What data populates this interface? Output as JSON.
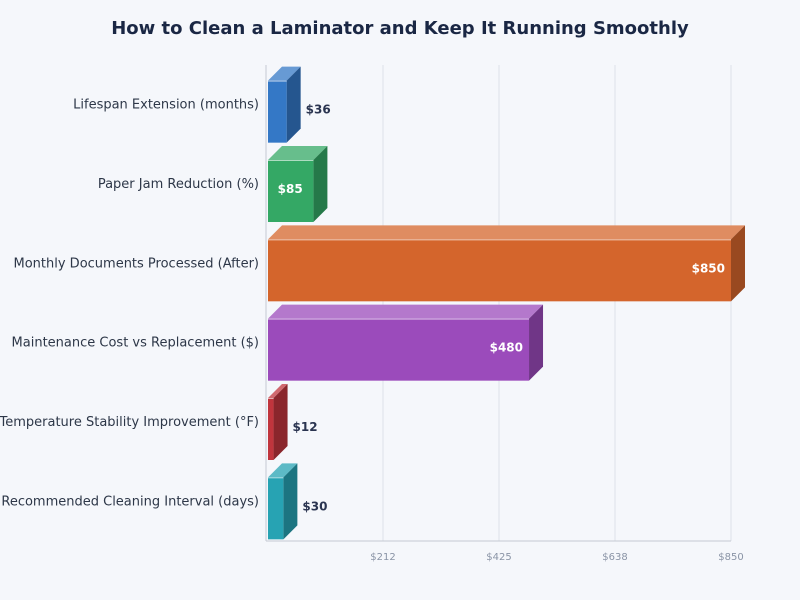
{
  "chart_data": {
    "type": "bar",
    "orientation": "horizontal",
    "style": "3d",
    "title": "How to Clean a Laminator and Keep It Running Smoothly",
    "categories": [
      "Lifespan Extension (months)",
      "Paper Jam Reduction (%)",
      "Monthly Documents Processed (After)",
      "Maintenance Cost vs Replacement ($)",
      "Temperature Stability Improvement (°F)",
      "Recommended Cleaning Interval (days)"
    ],
    "values": [
      36,
      85,
      850,
      480,
      12,
      30
    ],
    "data_labels": [
      "$36",
      "$85",
      "$850",
      "$480",
      "$12",
      "$30"
    ],
    "colors": [
      "#3478c6",
      "#34a865",
      "#d4652c",
      "#9b4bbb",
      "#c0353d",
      "#27a3b3"
    ],
    "xlim": [
      0,
      850
    ],
    "xticks": [
      "$212",
      "$425",
      "$638",
      "$850"
    ],
    "xtick_values": [
      212.5,
      425,
      637.5,
      850
    ],
    "grid": true
  }
}
